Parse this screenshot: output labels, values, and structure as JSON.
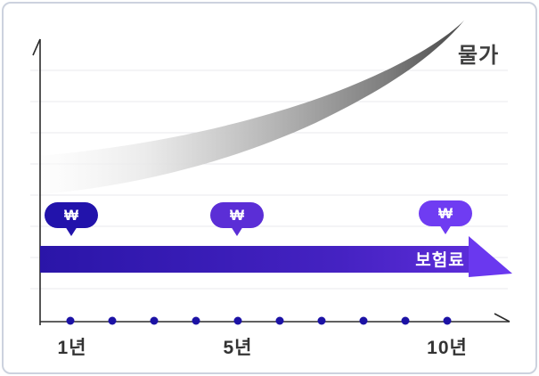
{
  "labels": {
    "price_curve": "물가",
    "premium_arrow": "보험료"
  },
  "bubbles": {
    "won_symbol": "₩",
    "items": [
      {
        "year": "1년",
        "color": "#2213ab"
      },
      {
        "year": "5년",
        "color": "#5b2ed6"
      },
      {
        "year": "10년",
        "color": "#6f3cf2"
      }
    ]
  },
  "axis": {
    "tick_labels": [
      "1년",
      "5년",
      "10년"
    ],
    "dot_count": 10
  },
  "colors": {
    "card_border": "#ccd2de",
    "band_start": "#2a15a8",
    "band_end": "#5b2cd8",
    "arrowhead": "#6a38ef",
    "timeline_dot": "#1c12a5",
    "curve_dark": "#474747",
    "gridline": "#e9e9ee",
    "axis": "#2b2b2b",
    "text_dark": "#3e3e3e"
  },
  "chart_data": {
    "type": "line",
    "title": "",
    "xlabel": "",
    "ylabel": "",
    "x": [
      1,
      2,
      3,
      4,
      5,
      6,
      7,
      8,
      9,
      10
    ],
    "x_unit": "년",
    "x_tick_labels": [
      "1년",
      "5년",
      "10년"
    ],
    "x_tick_positions": [
      1,
      5,
      10
    ],
    "grid": true,
    "legend_position": "inline-annotations",
    "axis_numeric_scale": false,
    "series": [
      {
        "name": "물가",
        "style": "gray gradient swoosh, exponential growth",
        "values_relative": [
          0.08,
          0.11,
          0.15,
          0.21,
          0.29,
          0.39,
          0.52,
          0.67,
          0.84,
          1.0
        ]
      },
      {
        "name": "보험료",
        "style": "flat indigo-to-purple arrow band, constant",
        "values_relative": [
          0.25,
          0.25,
          0.25,
          0.25,
          0.25,
          0.25,
          0.25,
          0.25,
          0.25,
          0.25
        ]
      }
    ],
    "annotations": [
      {
        "symbol": "₩",
        "at_year": 1
      },
      {
        "symbol": "₩",
        "at_year": 5
      },
      {
        "symbol": "₩",
        "at_year": 10
      }
    ]
  }
}
